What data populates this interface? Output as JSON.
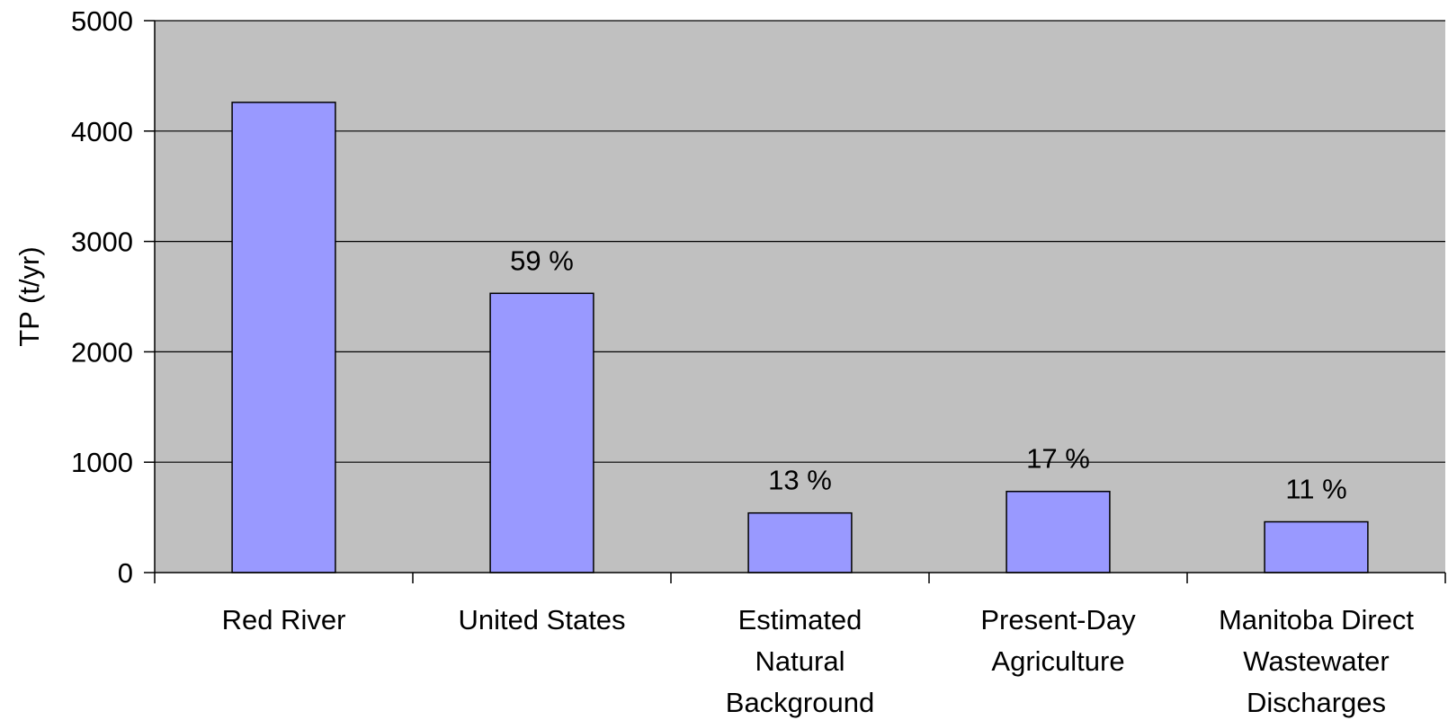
{
  "chart_data": {
    "type": "bar",
    "categories": [
      [
        "Red River"
      ],
      [
        "United States"
      ],
      [
        "Estimated",
        "Natural",
        "Background"
      ],
      [
        "Present-Day",
        "Agriculture"
      ],
      [
        "Manitoba Direct",
        "Wastewater",
        "Discharges"
      ]
    ],
    "values": [
      4260,
      2530,
      540,
      735,
      460
    ],
    "data_labels": [
      "",
      "59 %",
      "13 %",
      "17 %",
      "11 %"
    ],
    "title": "",
    "xlabel": "",
    "ylabel": "TP (t/yr)",
    "ylim": [
      0,
      5000
    ],
    "yticks": [
      0,
      1000,
      2000,
      3000,
      4000,
      5000
    ],
    "grid": true,
    "legend": "none",
    "colors": {
      "plot_background": "#C0C0C0",
      "bar_fill": "#9999FF",
      "bar_stroke": "#000000",
      "gridline": "#000000"
    }
  }
}
